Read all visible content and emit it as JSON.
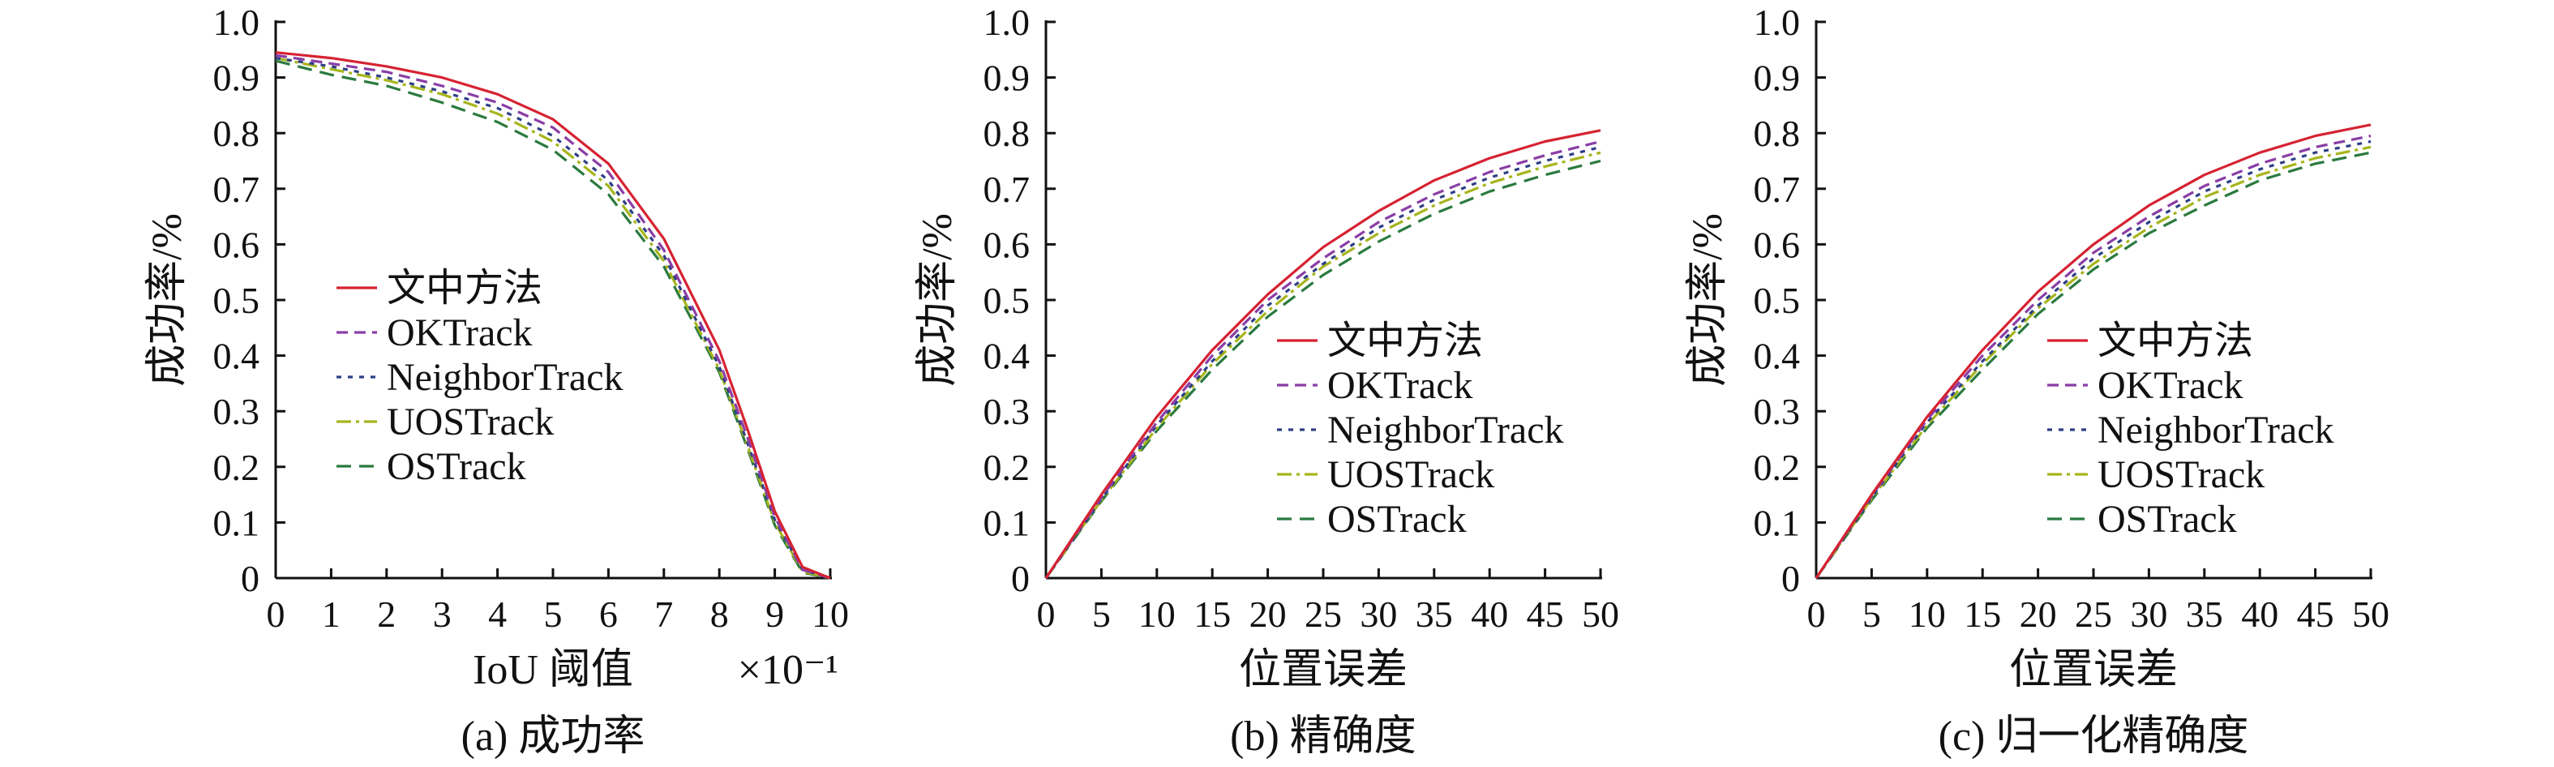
{
  "series_styles": [
    {
      "key": "ours",
      "color": "#d62232",
      "dash": ""
    },
    {
      "key": "okt",
      "color": "#8a3ea6",
      "dash": "14,8"
    },
    {
      "key": "nbt",
      "color": "#2e3f86",
      "dash": "6,8"
    },
    {
      "key": "uos",
      "color": "#a6b51c",
      "dash": "18,6,4,6"
    },
    {
      "key": "ost",
      "color": "#2a7a3e",
      "dash": "18,10"
    }
  ],
  "chart_data": [
    {
      "type": "line",
      "caption": "(a) 成功率",
      "xlabel": "IoU 阈值",
      "x_multiplier": "×10⁻¹",
      "ylabel": "成功率/%",
      "xlim": [
        0,
        10
      ],
      "ylim": [
        0,
        1.0
      ],
      "xticks": [
        "0",
        "1",
        "2",
        "3",
        "4",
        "5",
        "6",
        "7",
        "8",
        "9",
        "10"
      ],
      "yticks": [
        "0",
        "0.1",
        "0.2",
        "0.3",
        "0.4",
        "0.5",
        "0.6",
        "0.7",
        "0.8",
        "0.9",
        "1.0"
      ],
      "legend_position": "center-left",
      "x": [
        0,
        1,
        2,
        3,
        4,
        5,
        6,
        7,
        8,
        8.5,
        9,
        9.5,
        10
      ],
      "series": [
        {
          "name": "文中方法",
          "values": [
            0.945,
            0.935,
            0.92,
            0.9,
            0.87,
            0.825,
            0.745,
            0.61,
            0.41,
            0.27,
            0.12,
            0.02,
            0
          ]
        },
        {
          "name": "OKTrack",
          "values": [
            0.94,
            0.925,
            0.91,
            0.885,
            0.855,
            0.81,
            0.73,
            0.59,
            0.39,
            0.255,
            0.11,
            0.015,
            0
          ]
        },
        {
          "name": "NeighborTrack",
          "values": [
            0.935,
            0.92,
            0.9,
            0.875,
            0.845,
            0.795,
            0.715,
            0.58,
            0.38,
            0.245,
            0.105,
            0.015,
            0
          ]
        },
        {
          "name": "UOSTrack",
          "values": [
            0.935,
            0.915,
            0.895,
            0.87,
            0.835,
            0.785,
            0.705,
            0.57,
            0.375,
            0.24,
            0.1,
            0.012,
            0
          ]
        },
        {
          "name": "OSTrack",
          "values": [
            0.93,
            0.905,
            0.885,
            0.855,
            0.82,
            0.77,
            0.69,
            0.56,
            0.37,
            0.235,
            0.095,
            0.01,
            0
          ]
        }
      ]
    },
    {
      "type": "line",
      "caption": "(b) 精确度",
      "xlabel": "位置误差",
      "ylabel": "成功率/%",
      "xlim": [
        0,
        50
      ],
      "ylim": [
        0,
        1.0
      ],
      "xticks": [
        "0",
        "5",
        "10",
        "15",
        "20",
        "25",
        "30",
        "35",
        "40",
        "45",
        "50"
      ],
      "yticks": [
        "0",
        "0.1",
        "0.2",
        "0.3",
        "0.4",
        "0.5",
        "0.6",
        "0.7",
        "0.8",
        "0.9",
        "1.0"
      ],
      "legend_position": "center-right",
      "x": [
        0,
        5,
        10,
        15,
        20,
        25,
        30,
        35,
        40,
        45,
        50
      ],
      "series": [
        {
          "name": "文中方法",
          "values": [
            0,
            0.15,
            0.29,
            0.41,
            0.51,
            0.595,
            0.66,
            0.715,
            0.755,
            0.785,
            0.805
          ]
        },
        {
          "name": "OKTrack",
          "values": [
            0,
            0.145,
            0.28,
            0.4,
            0.5,
            0.575,
            0.64,
            0.69,
            0.73,
            0.76,
            0.785
          ]
        },
        {
          "name": "NeighborTrack",
          "values": [
            0,
            0.142,
            0.275,
            0.39,
            0.49,
            0.565,
            0.63,
            0.68,
            0.72,
            0.75,
            0.775
          ]
        },
        {
          "name": "UOSTrack",
          "values": [
            0,
            0.14,
            0.27,
            0.385,
            0.48,
            0.56,
            0.62,
            0.67,
            0.71,
            0.74,
            0.765
          ]
        },
        {
          "name": "OSTrack",
          "values": [
            0,
            0.138,
            0.265,
            0.375,
            0.47,
            0.545,
            0.605,
            0.655,
            0.695,
            0.725,
            0.75
          ]
        }
      ]
    },
    {
      "type": "line",
      "caption": "(c) 归一化精确度",
      "xlabel": "位置误差",
      "ylabel": "成功率/%",
      "xlim": [
        0,
        50
      ],
      "ylim": [
        0,
        1.0
      ],
      "xticks": [
        "0",
        "5",
        "10",
        "15",
        "20",
        "25",
        "30",
        "35",
        "40",
        "45",
        "50"
      ],
      "yticks": [
        "0",
        "0.1",
        "0.2",
        "0.3",
        "0.4",
        "0.5",
        "0.6",
        "0.7",
        "0.8",
        "0.9",
        "1.0"
      ],
      "legend_position": "center-right",
      "x": [
        0,
        5,
        10,
        15,
        20,
        25,
        30,
        35,
        40,
        45,
        50
      ],
      "series": [
        {
          "name": "文中方法",
          "values": [
            0,
            0.15,
            0.29,
            0.41,
            0.515,
            0.6,
            0.67,
            0.725,
            0.765,
            0.795,
            0.815
          ]
        },
        {
          "name": "OKTrack",
          "values": [
            0,
            0.148,
            0.285,
            0.4,
            0.5,
            0.585,
            0.65,
            0.705,
            0.745,
            0.775,
            0.795
          ]
        },
        {
          "name": "NeighborTrack",
          "values": [
            0,
            0.145,
            0.28,
            0.39,
            0.49,
            0.575,
            0.64,
            0.695,
            0.735,
            0.765,
            0.785
          ]
        },
        {
          "name": "UOSTrack",
          "values": [
            0,
            0.143,
            0.275,
            0.385,
            0.485,
            0.565,
            0.63,
            0.685,
            0.725,
            0.755,
            0.775
          ]
        },
        {
          "name": "OSTrack",
          "values": [
            0,
            0.14,
            0.27,
            0.375,
            0.475,
            0.555,
            0.62,
            0.67,
            0.715,
            0.745,
            0.765
          ]
        }
      ]
    }
  ]
}
